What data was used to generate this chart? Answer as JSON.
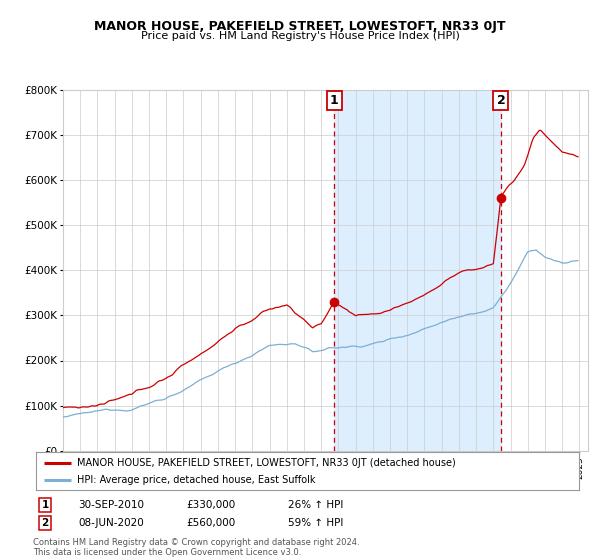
{
  "title": "MANOR HOUSE, PAKEFIELD STREET, LOWESTOFT, NR33 0JT",
  "subtitle": "Price paid vs. HM Land Registry's House Price Index (HPI)",
  "legend_line1": "MANOR HOUSE, PAKEFIELD STREET, LOWESTOFT, NR33 0JT (detached house)",
  "legend_line2": "HPI: Average price, detached house, East Suffolk",
  "annotation1_date": "30-SEP-2010",
  "annotation1_price": "£330,000",
  "annotation1_hpi": "26% ↑ HPI",
  "annotation2_date": "08-JUN-2020",
  "annotation2_price": "£560,000",
  "annotation2_hpi": "59% ↑ HPI",
  "footer": "Contains HM Land Registry data © Crown copyright and database right 2024.\nThis data is licensed under the Open Government Licence v3.0.",
  "marker1_x": 2010.75,
  "marker1_y": 330000,
  "marker2_x": 2020.44,
  "marker2_y": 560000,
  "vline1_x": 2010.75,
  "vline2_x": 2020.44,
  "ylim": [
    0,
    800000
  ],
  "xlim_start": 1995,
  "xlim_end": 2025.5,
  "property_color": "#cc0000",
  "hpi_color": "#7bafd4",
  "shade_color": "#ddeeff",
  "grid_color": "#cccccc",
  "bg_color": "#ffffff"
}
